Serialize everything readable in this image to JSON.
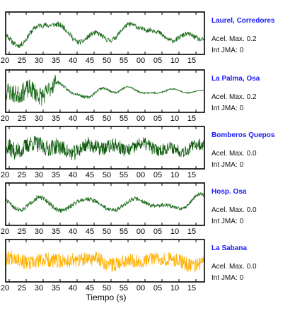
{
  "chart_data": [
    {
      "type": "line",
      "station": "Laurel, Corredores",
      "max_accel_label": "Acel. Max.",
      "max_accel_value": "0.2",
      "jma_label": "Int JMA:",
      "jma_value": "0",
      "color": "#1a6b1a",
      "xticks": [
        "20",
        "25",
        "30",
        "35",
        "40",
        "45",
        "50",
        "55",
        "00",
        "05",
        "10",
        "15"
      ],
      "show_tick_labels": true,
      "wave": {
        "seed": 11,
        "style": "lowfreq",
        "amp": 0.85,
        "decay": 0.15
      }
    },
    {
      "type": "line",
      "station": "La Palma, Osa",
      "max_accel_label": "Acel. Max.",
      "max_accel_value": "0.2",
      "jma_label": "Int JMA:",
      "jma_value": "0",
      "color": "#1a6b1a",
      "xticks": [
        "20",
        "25",
        "30",
        "35",
        "40",
        "45",
        "50",
        "55",
        "00",
        "05",
        "10",
        "15"
      ],
      "show_tick_labels": true,
      "wave": {
        "seed": 23,
        "style": "burst",
        "amp": 0.95,
        "decay": 0.85
      }
    },
    {
      "type": "line",
      "station": "Bomberos Quepos",
      "max_accel_label": "Acel. Max.",
      "max_accel_value": "0.0",
      "jma_label": "Int JMA:",
      "jma_value": "0",
      "color": "#0d5a0d",
      "xticks": [
        "20",
        "25",
        "30",
        "35",
        "40",
        "45",
        "50",
        "55",
        "00",
        "05",
        "10",
        "15"
      ],
      "show_tick_labels": true,
      "wave": {
        "seed": 37,
        "style": "noisy",
        "amp": 0.8,
        "decay": 0.35
      }
    },
    {
      "type": "line",
      "station": "Hosp. Osa",
      "max_accel_label": "Acel. Max.",
      "max_accel_value": "0.0",
      "jma_label": "Int JMA:",
      "jma_value": "0",
      "color": "#1a6b1a",
      "xticks": [
        "20",
        "25",
        "30",
        "35",
        "40",
        "45",
        "50",
        "55",
        "00",
        "05",
        "10",
        "15"
      ],
      "show_tick_labels": true,
      "wave": {
        "seed": 51,
        "style": "lowfreq",
        "amp": 0.75,
        "decay": 0.25
      }
    },
    {
      "type": "line",
      "station": "La Sabana",
      "max_accel_label": "Acel. Max.",
      "max_accel_value": "0.0",
      "jma_label": "Int JMA:",
      "jma_value": "0",
      "color": "#ffb000",
      "xticks": [
        "20",
        "25",
        "30",
        "35",
        "40",
        "45",
        "50",
        "55",
        "00",
        "05",
        "10",
        "15"
      ],
      "show_tick_labels": true,
      "wave": {
        "seed": 67,
        "style": "noisy",
        "amp": 0.7,
        "decay": 0.1
      }
    }
  ],
  "xlabel": "Tiempo (s)"
}
